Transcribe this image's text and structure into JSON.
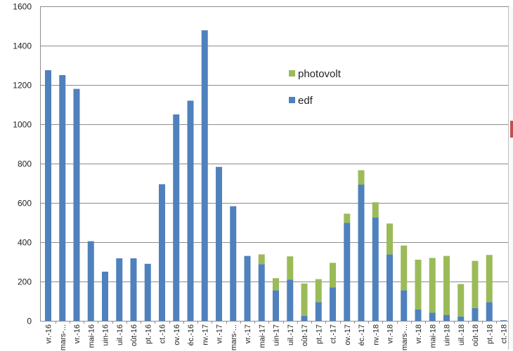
{
  "chart_data": {
    "type": "bar",
    "stacked": true,
    "title": "",
    "xlabel": "",
    "ylabel": "",
    "ylim": [
      0,
      1600
    ],
    "yticks": [
      0,
      200,
      400,
      600,
      800,
      1000,
      1200,
      1400,
      1600
    ],
    "grid": true,
    "legend_position": "top-center",
    "categories": [
      "vr.-16",
      "mars-...",
      "vr.-16",
      "mai-16",
      "uin-16",
      "uil.-16",
      "oût-16",
      "pt.-16",
      "ct.-16",
      "ov.-16",
      "éc.-16",
      "nv.-17",
      "vr.-17",
      "mars-...",
      "vr.-17",
      "mai-17",
      "uin-17",
      "uil.-17",
      "oût-17",
      "pt.-17",
      "ct.-17",
      "ov.-17",
      "éc.-17",
      "nv.-18",
      "vr.-18",
      "mars-...",
      "vr.-18",
      "mai-18",
      "uin-18",
      "uil.-18",
      "oût-18",
      "pt.-18",
      "ct.-18"
    ],
    "series": [
      {
        "name": "edf",
        "color": "#4f81bd",
        "values": [
          1275,
          1250,
          1180,
          405,
          250,
          318,
          318,
          290,
          695,
          1050,
          1120,
          1478,
          783,
          583,
          330,
          288,
          155,
          210,
          25,
          95,
          170,
          498,
          693,
          525,
          338,
          155,
          58,
          42,
          30,
          22,
          65,
          95,
          3
        ]
      },
      {
        "name": "photovolt",
        "color": "#9bbb59",
        "values": [
          0,
          0,
          0,
          0,
          0,
          0,
          0,
          0,
          0,
          0,
          0,
          0,
          0,
          0,
          0,
          50,
          62,
          118,
          165,
          117,
          125,
          47,
          73,
          78,
          157,
          228,
          253,
          278,
          300,
          165,
          240,
          240,
          0
        ]
      }
    ]
  }
}
